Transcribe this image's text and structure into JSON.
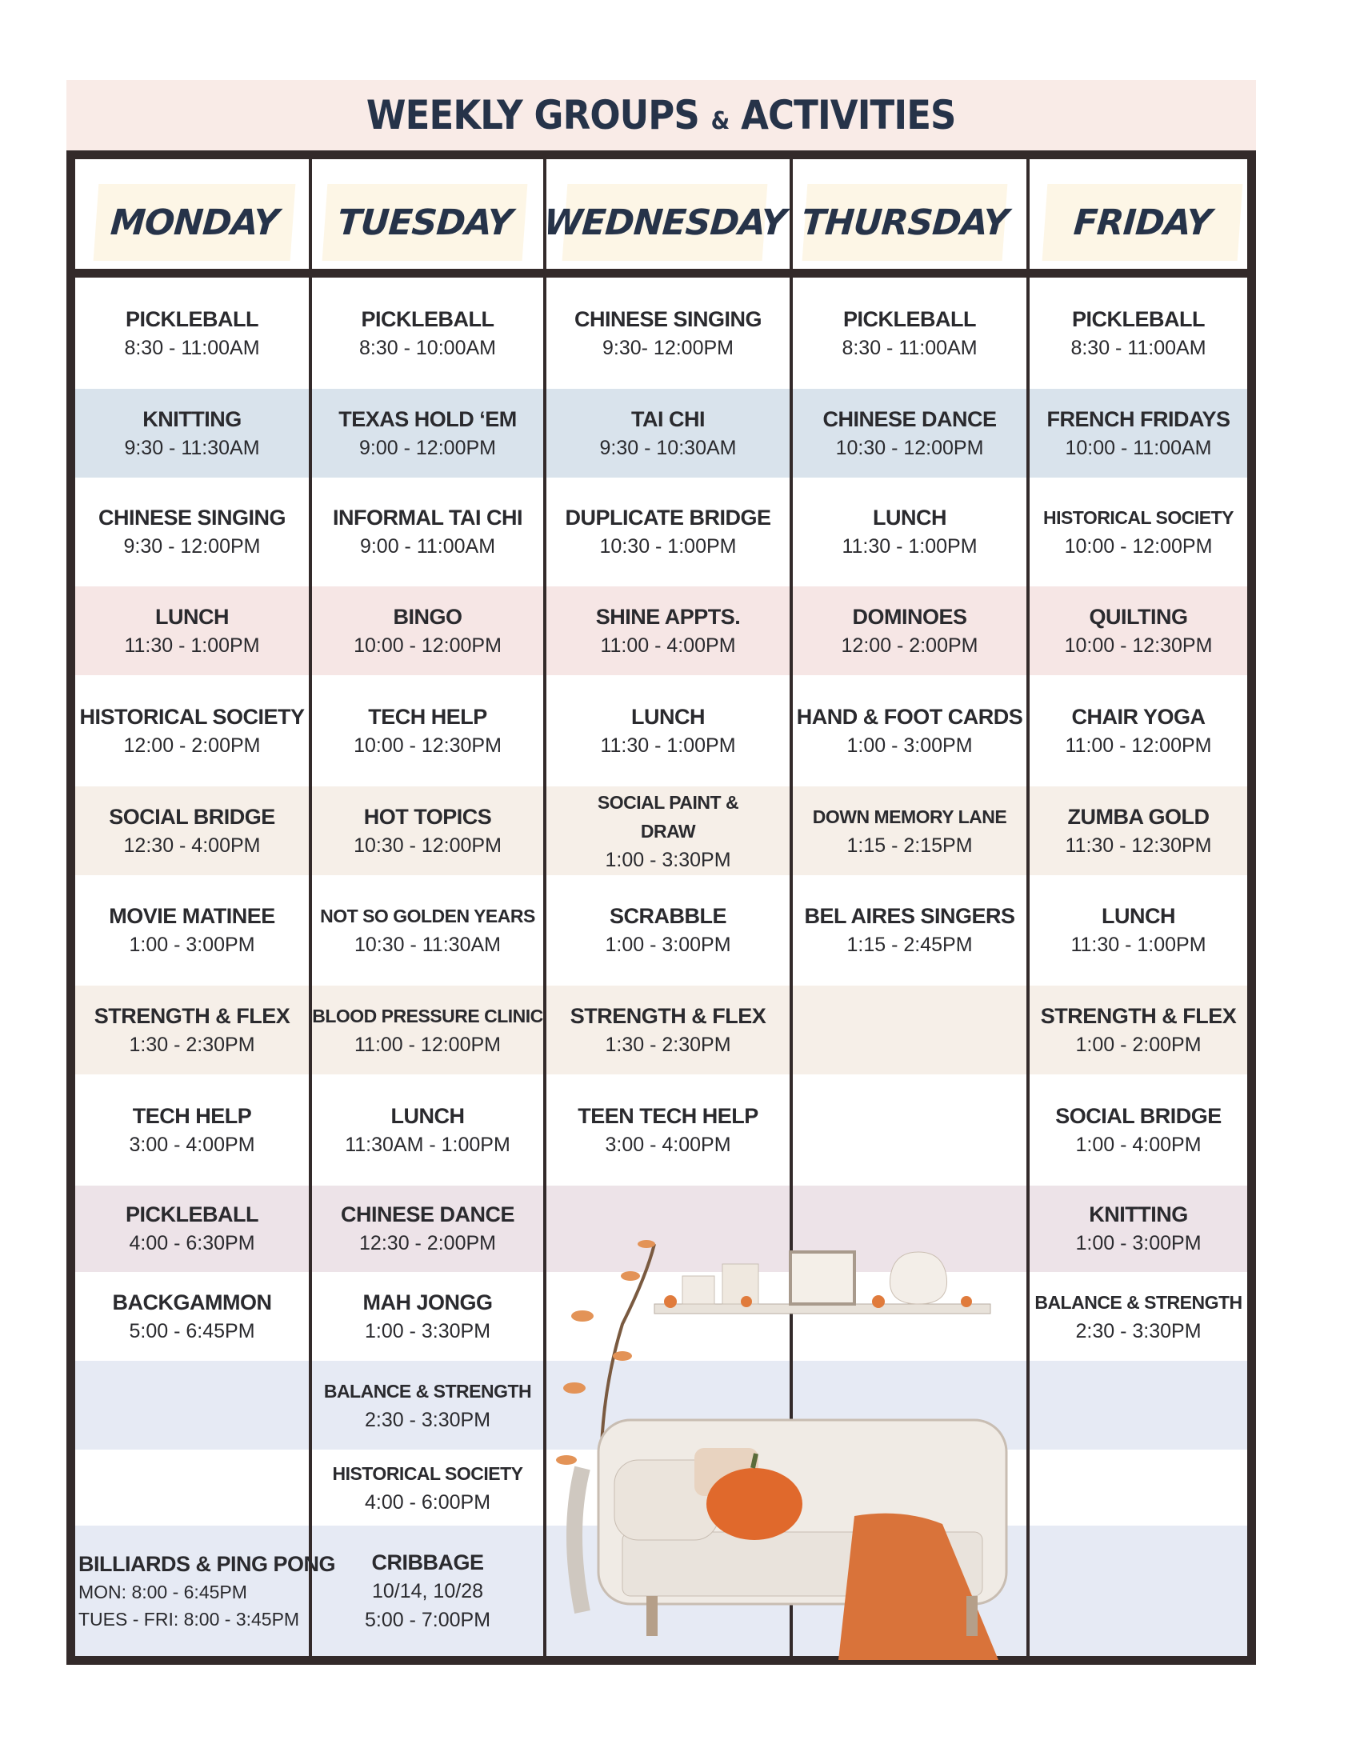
{
  "title": {
    "text_a": "WEEKLY GROUPS ",
    "amp": "&",
    "text_b": " ACTIVITIES",
    "color": "#263349"
  },
  "colors": {
    "header_band": "#f9ebe7",
    "day_label": "#fdf6e6",
    "frame": "#332a2a",
    "row_bands": [
      "#ffffff",
      "#d9e3ec",
      "#ffffff",
      "#f6e6e5",
      "#ffffff",
      "#f6efe8",
      "#ffffff",
      "#f6efe8",
      "#ffffff",
      "#ede3e8",
      "#ffffff",
      "#e6eaf4",
      "#ffffff",
      "#e6eaf4"
    ]
  },
  "days": [
    {
      "label": "MONDAY",
      "items": [
        {
          "row": 0,
          "name": "PICKLEBALL",
          "times": [
            "8:30 - 11:00AM"
          ]
        },
        {
          "row": 1,
          "name": "KNITTING",
          "times": [
            "9:30 - 11:30AM"
          ]
        },
        {
          "row": 2,
          "name": "CHINESE SINGING",
          "times": [
            "9:30 - 12:00PM"
          ]
        },
        {
          "row": 3,
          "name": "LUNCH",
          "times": [
            "11:30 - 1:00PM"
          ]
        },
        {
          "row": 4,
          "name": "HISTORICAL SOCIETY",
          "times": [
            "12:00 - 2:00PM"
          ]
        },
        {
          "row": 5,
          "name": "SOCIAL BRIDGE",
          "times": [
            "12:30 - 4:00PM"
          ]
        },
        {
          "row": 6,
          "name": "MOVIE MATINEE",
          "times": [
            "1:00 - 3:00PM"
          ]
        },
        {
          "row": 7,
          "name": "STRENGTH & FLEX",
          "times": [
            "1:30 - 2:30PM"
          ]
        },
        {
          "row": 8,
          "name": "TECH HELP",
          "times": [
            "3:00 - 4:00PM"
          ]
        },
        {
          "row": 9,
          "name": "PICKLEBALL",
          "times": [
            "4:00 - 6:30PM"
          ]
        },
        {
          "row": 10,
          "name": "BACKGAMMON",
          "times": [
            "5:00 - 6:45PM"
          ]
        },
        {
          "row": 13,
          "name": "BILLIARDS & PING PONG",
          "times": [
            "MON: 8:00 - 6:45PM",
            "TUES - FRI: 8:00 - 3:45PM"
          ],
          "align": "left"
        }
      ]
    },
    {
      "label": "TUESDAY",
      "items": [
        {
          "row": 0,
          "name": "PICKLEBALL",
          "times": [
            "8:30 - 10:00AM"
          ]
        },
        {
          "row": 1,
          "name": "TEXAS HOLD ‘EM",
          "times": [
            "9:00 - 12:00PM"
          ]
        },
        {
          "row": 2,
          "name": "INFORMAL TAI CHI",
          "times": [
            "9:00 - 11:00AM"
          ]
        },
        {
          "row": 3,
          "name": "BINGO",
          "times": [
            "10:00 - 12:00PM"
          ]
        },
        {
          "row": 4,
          "name": "TECH HELP",
          "times": [
            "10:00 - 12:30PM"
          ]
        },
        {
          "row": 5,
          "name": "HOT TOPICS",
          "times": [
            "10:30 - 12:00PM"
          ]
        },
        {
          "row": 6,
          "name": "NOT SO GOLDEN YEARS",
          "times": [
            "10:30 - 11:30AM"
          ],
          "small": true
        },
        {
          "row": 7,
          "name": "BLOOD PRESSURE CLINIC",
          "times": [
            "11:00 - 12:00PM"
          ],
          "small": true
        },
        {
          "row": 8,
          "name": "LUNCH",
          "times": [
            "11:30AM - 1:00PM"
          ]
        },
        {
          "row": 9,
          "name": "CHINESE DANCE",
          "times": [
            "12:30 - 2:00PM"
          ]
        },
        {
          "row": 10,
          "name": "MAH JONGG",
          "times": [
            "1:00 - 3:30PM"
          ]
        },
        {
          "row": 11,
          "name": "BALANCE & STRENGTH",
          "times": [
            "2:30 - 3:30PM"
          ],
          "small": true
        },
        {
          "row": 12,
          "name": "HISTORICAL SOCIETY",
          "times": [
            "4:00 - 6:00PM"
          ],
          "small": true
        },
        {
          "row": 13,
          "name": "CRIBBAGE",
          "times": [
            "10/14, 10/28",
            "5:00 - 7:00PM"
          ]
        }
      ]
    },
    {
      "label": "WEDNESDAY",
      "items": [
        {
          "row": 0,
          "name": "CHINESE SINGING",
          "times": [
            "9:30- 12:00PM"
          ]
        },
        {
          "row": 1,
          "name": "TAI CHI",
          "times": [
            "9:30 - 10:30AM"
          ]
        },
        {
          "row": 2,
          "name": "DUPLICATE BRIDGE",
          "times": [
            "10:30 - 1:00PM"
          ]
        },
        {
          "row": 3,
          "name": "SHINE APPTS.",
          "times": [
            "11:00 - 4:00PM"
          ]
        },
        {
          "row": 4,
          "name": "LUNCH",
          "times": [
            "11:30 - 1:00PM"
          ]
        },
        {
          "row": 5,
          "name": "SOCIAL PAINT &\nDRAW",
          "times": [
            "1:00 - 3:30PM"
          ],
          "small": true
        },
        {
          "row": 6,
          "name": "SCRABBLE",
          "times": [
            "1:00 - 3:00PM"
          ]
        },
        {
          "row": 7,
          "name": "STRENGTH & FLEX",
          "times": [
            "1:30 - 2:30PM"
          ]
        },
        {
          "row": 8,
          "name": "TEEN TECH HELP",
          "times": [
            "3:00 - 4:00PM"
          ]
        }
      ]
    },
    {
      "label": "THURSDAY",
      "items": [
        {
          "row": 0,
          "name": "PICKLEBALL",
          "times": [
            "8:30 - 11:00AM"
          ]
        },
        {
          "row": 1,
          "name": "CHINESE DANCE",
          "times": [
            "10:30 - 12:00PM"
          ]
        },
        {
          "row": 2,
          "name": "LUNCH",
          "times": [
            "11:30 - 1:00PM"
          ]
        },
        {
          "row": 3,
          "name": "DOMINOES",
          "times": [
            "12:00 - 2:00PM"
          ]
        },
        {
          "row": 4,
          "name": "HAND & FOOT CARDS",
          "times": [
            "1:00 - 3:00PM"
          ]
        },
        {
          "row": 5,
          "name": "DOWN MEMORY LANE",
          "times": [
            "1:15 - 2:15PM"
          ],
          "small": true
        },
        {
          "row": 6,
          "name": "BEL AIRES SINGERS",
          "times": [
            "1:15 - 2:45PM"
          ]
        }
      ]
    },
    {
      "label": "FRIDAY",
      "items": [
        {
          "row": 0,
          "name": "PICKLEBALL",
          "times": [
            "8:30 - 11:00AM"
          ]
        },
        {
          "row": 1,
          "name": "FRENCH FRIDAYS",
          "times": [
            "10:00 - 11:00AM"
          ]
        },
        {
          "row": 2,
          "name": "HISTORICAL SOCIETY",
          "times": [
            "10:00 - 12:00PM"
          ],
          "small": true
        },
        {
          "row": 3,
          "name": "QUILTING",
          "times": [
            "10:00 - 12:30PM"
          ]
        },
        {
          "row": 4,
          "name": "CHAIR YOGA",
          "times": [
            "11:00 - 12:00PM"
          ]
        },
        {
          "row": 5,
          "name": "ZUMBA GOLD",
          "times": [
            "11:30 - 12:30PM"
          ]
        },
        {
          "row": 6,
          "name": "LUNCH",
          "times": [
            "11:30 - 1:00PM"
          ]
        },
        {
          "row": 7,
          "name": "STRENGTH & FLEX",
          "times": [
            "1:00 - 2:00PM"
          ]
        },
        {
          "row": 8,
          "name": "SOCIAL BRIDGE",
          "times": [
            "1:00 - 4:00PM"
          ]
        },
        {
          "row": 9,
          "name": "KNITTING",
          "times": [
            "1:00 - 3:00PM"
          ]
        },
        {
          "row": 10,
          "name": "BALANCE & STRENGTH",
          "times": [
            "2:30 - 3:30PM"
          ],
          "small": true
        }
      ]
    }
  ]
}
